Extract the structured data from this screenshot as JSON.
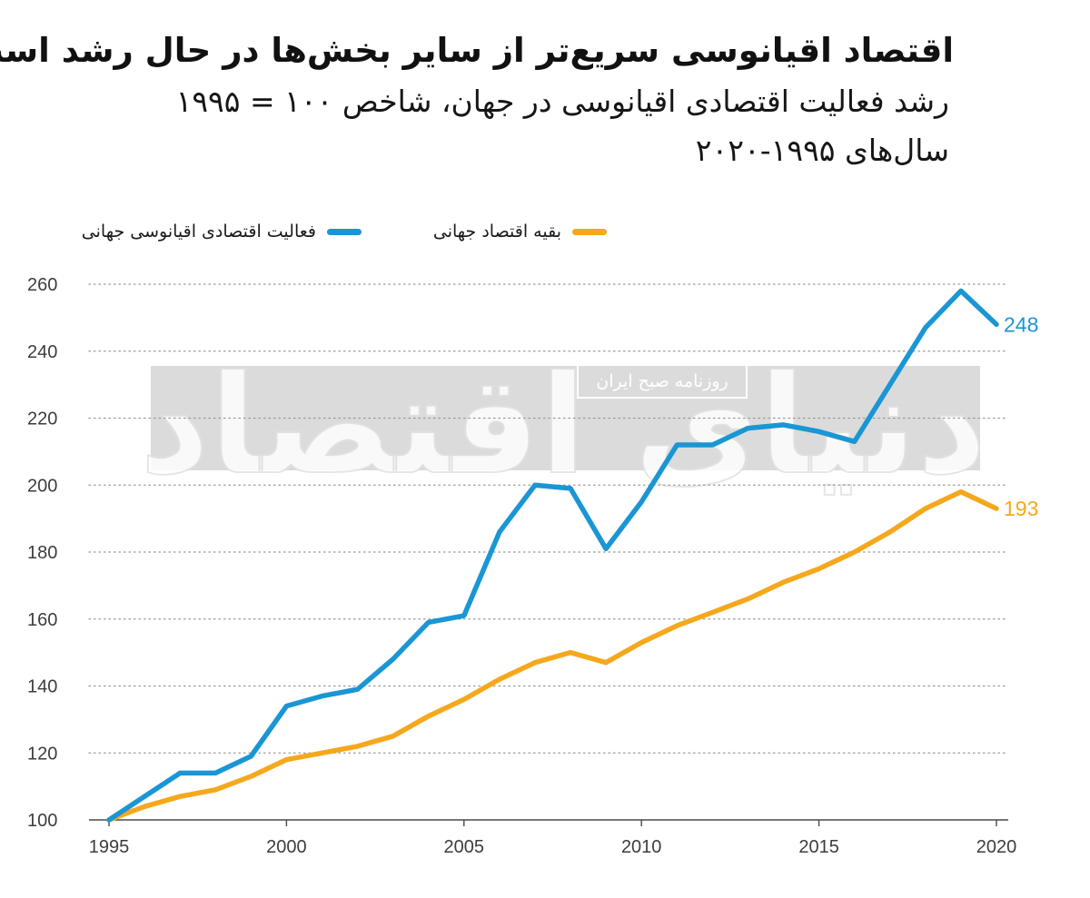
{
  "title": "اقتصاد اقیانوسی سریع‌تر از سایر بخش‌ها در حال رشد است",
  "subtitle_line1": "رشد فعالیت اقتصادی اقیانوسی در جهان، شاخص ۱۰۰ = ۱۹۹۵",
  "subtitle_line2": "سال‌های ۱۹۹۵-۲۰۲۰",
  "watermark": {
    "logo_text": "دنیای اقتصاد",
    "badge_text": "روزنامه صبح ایران"
  },
  "colors": {
    "ocean": "#1a96d4",
    "rest": "#f5a81c",
    "grid": "#9a9a9a",
    "axis": "#4a4a4a"
  },
  "chart_data": {
    "type": "line",
    "x": [
      1995,
      1996,
      1997,
      1998,
      1999,
      2000,
      2001,
      2002,
      2003,
      2004,
      2005,
      2006,
      2007,
      2008,
      2009,
      2010,
      2011,
      2012,
      2013,
      2014,
      2015,
      2016,
      2017,
      2018,
      2019,
      2020
    ],
    "xticks": [
      "1995",
      "2000",
      "2005",
      "2010",
      "2015",
      "2020"
    ],
    "yticks": [
      "100",
      "120",
      "140",
      "160",
      "180",
      "200",
      "220",
      "240",
      "260"
    ],
    "xlim": [
      1995,
      2020
    ],
    "ylim": [
      100,
      260
    ],
    "grid": true,
    "legend_position": "top",
    "series": [
      {
        "name": "فعالیت اقتصادی اقیانوسی جهانی",
        "color": "#1a96d4",
        "end_label": "248",
        "values": [
          100,
          107,
          114,
          114,
          119,
          134,
          137,
          139,
          148,
          159,
          161,
          186,
          200,
          199,
          181,
          195,
          212,
          212,
          217,
          218,
          216,
          213,
          230,
          247,
          258,
          248
        ]
      },
      {
        "name": "بقیه اقتصاد جهانی",
        "color": "#f5a81c",
        "end_label": "193",
        "values": [
          100,
          104,
          107,
          109,
          113,
          118,
          120,
          122,
          125,
          131,
          136,
          142,
          147,
          150,
          147,
          153,
          158,
          162,
          166,
          171,
          175,
          180,
          186,
          193,
          198,
          193
        ]
      }
    ]
  }
}
